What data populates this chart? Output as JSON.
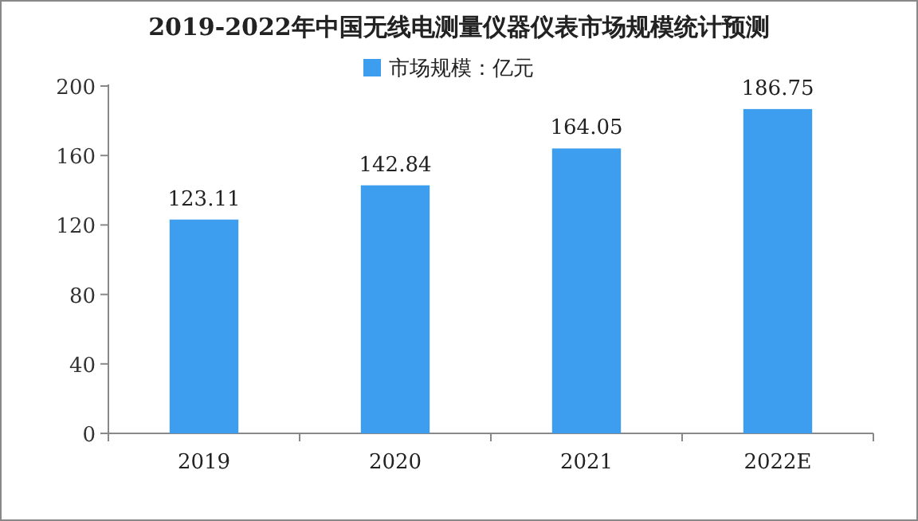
{
  "chart_data": {
    "type": "bar",
    "title": "2019-2022年中国无线电测量仪器仪表市场规模统计预测",
    "categories": [
      "2019",
      "2020",
      "2021",
      "2022E"
    ],
    "series": [
      {
        "name": "市场规模：亿元",
        "color": "#3d9ef0",
        "values": [
          123.11,
          142.84,
          164.05,
          186.75
        ]
      }
    ],
    "ylim": [
      0,
      200
    ],
    "yticks": [
      0,
      40,
      80,
      120,
      160,
      200
    ],
    "data_labels": true,
    "legend": "top",
    "grid": false
  }
}
